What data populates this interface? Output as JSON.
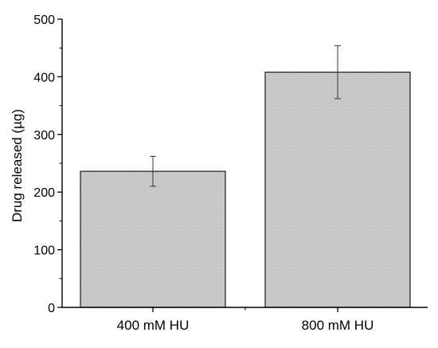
{
  "chart_data": {
    "type": "bar",
    "title": "",
    "xlabel": "",
    "ylabel": "Drug released (µg)",
    "categories": [
      "400 mM HU",
      "800 mM HU"
    ],
    "values": [
      236,
      408
    ],
    "errors": [
      26,
      46
    ],
    "ylim": [
      0,
      500
    ],
    "yticks": [
      0,
      100,
      200,
      300,
      400,
      500
    ],
    "grid": false,
    "legend": "none",
    "bar_color": "#c8c8c8",
    "bar_edge_color": "#1a1a1a",
    "axis_color": "#000000"
  }
}
